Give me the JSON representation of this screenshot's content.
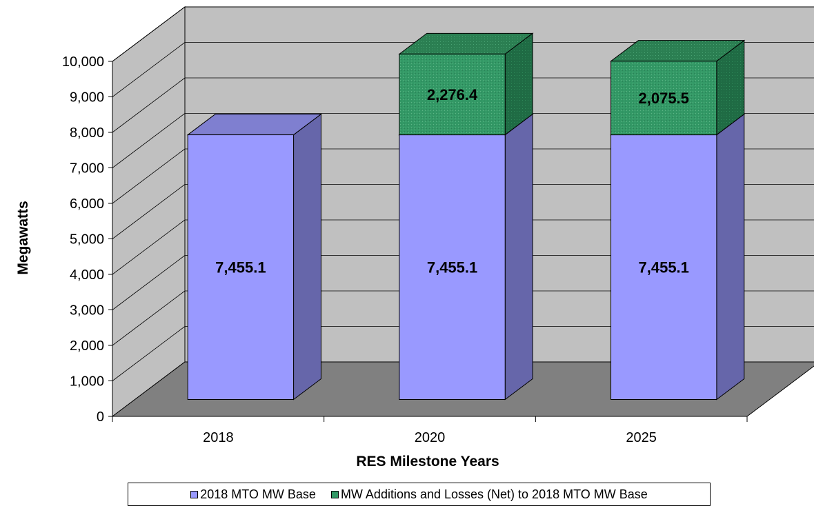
{
  "chart_data": {
    "type": "bar",
    "stacked": true,
    "three_d": true,
    "categories": [
      "2018",
      "2020",
      "2025"
    ],
    "series": [
      {
        "name": "2018 MTO MW Base",
        "values": [
          7455.1,
          7455.1,
          7455.1
        ],
        "labels": [
          "7,455.1",
          "7,455.1",
          "7,455.1"
        ],
        "color": "#9999FF"
      },
      {
        "name": "MW Additions and Losses (Net) to 2018 MTO MW Base",
        "values": [
          0,
          2276.4,
          2075.5
        ],
        "labels": [
          "",
          "2,276.4",
          "2,075.5"
        ],
        "color": "#339966"
      }
    ],
    "xlabel": "RES Milestone Years",
    "ylabel": "Megawatts",
    "ylim": [
      0,
      10000
    ],
    "yticks": [
      0,
      1000,
      2000,
      3000,
      4000,
      5000,
      6000,
      7000,
      8000,
      9000,
      10000
    ],
    "ytick_labels": [
      "0",
      "1,000",
      "2,000",
      "3,000",
      "4,000",
      "5,000",
      "6,000",
      "7,000",
      "8,000",
      "9,000",
      "10,000"
    ],
    "grid": true,
    "legend_position": "bottom"
  }
}
